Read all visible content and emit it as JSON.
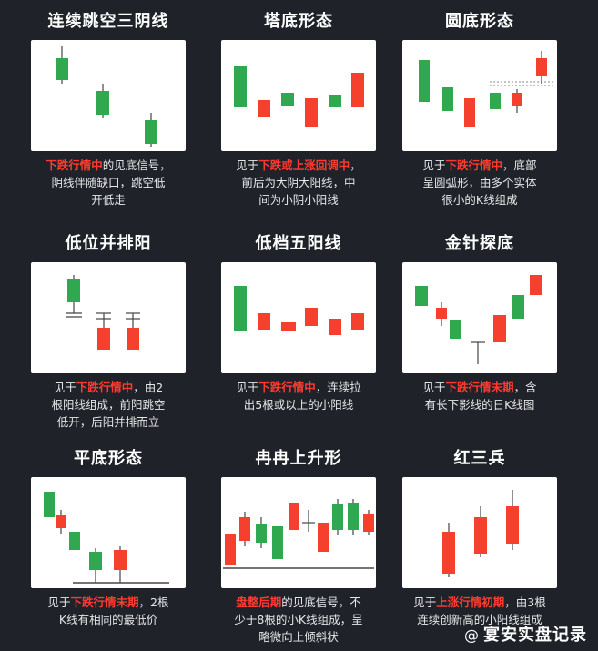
{
  "colors": {
    "up": "#f5402e",
    "down": "#2fa84f",
    "wick": "#555555",
    "highlight": "#ff3b30"
  },
  "patterns": [
    {
      "title": "连续跳空三阴线",
      "desc_lines": [
        [
          {
            "t": "下跌行情中",
            "hl": true
          },
          {
            "t": "的见底信号，",
            "hl": false
          }
        ],
        [
          {
            "t": "阴线伴随缺口，跳空低",
            "hl": false
          }
        ],
        [
          {
            "t": "开低走",
            "hl": false
          }
        ]
      ]
    },
    {
      "title": "塔底形态",
      "desc_lines": [
        [
          {
            "t": "见于",
            "hl": false
          },
          {
            "t": "下跌或上涨回调中",
            "hl": true
          },
          {
            "t": "，",
            "hl": false
          }
        ],
        [
          {
            "t": "前后为大阴大阳线，中",
            "hl": false
          }
        ],
        [
          {
            "t": "间为小阴小阳线",
            "hl": false
          }
        ]
      ]
    },
    {
      "title": "圆底形态",
      "desc_lines": [
        [
          {
            "t": "见于",
            "hl": false
          },
          {
            "t": "下跌行情中",
            "hl": true
          },
          {
            "t": "，底部",
            "hl": false
          }
        ],
        [
          {
            "t": "呈圆弧形，由多个实体",
            "hl": false
          }
        ],
        [
          {
            "t": "很小的K线组成",
            "hl": false
          }
        ]
      ]
    },
    {
      "title": "低位并排阳",
      "desc_lines": [
        [
          {
            "t": "见于",
            "hl": false
          },
          {
            "t": "下跌行情中",
            "hl": true
          },
          {
            "t": "，由2",
            "hl": false
          }
        ],
        [
          {
            "t": "根阳线组成，前阳跳空",
            "hl": false
          }
        ],
        [
          {
            "t": "低开，后阳并排而立",
            "hl": false
          }
        ]
      ]
    },
    {
      "title": "低档五阳线",
      "desc_lines": [
        [
          {
            "t": "见于",
            "hl": false
          },
          {
            "t": "下跌行情中",
            "hl": true
          },
          {
            "t": "，连续拉",
            "hl": false
          }
        ],
        [
          {
            "t": "出5根或以上的小阳线",
            "hl": false
          }
        ]
      ]
    },
    {
      "title": "金针探底",
      "desc_lines": [
        [
          {
            "t": "见于",
            "hl": false
          },
          {
            "t": "下跌行情末期",
            "hl": true
          },
          {
            "t": "，含",
            "hl": false
          }
        ],
        [
          {
            "t": "有长下影线的日K线图",
            "hl": false
          }
        ]
      ]
    },
    {
      "title": "平底形态",
      "desc_lines": [
        [
          {
            "t": "见于",
            "hl": false
          },
          {
            "t": "下跌行情末期",
            "hl": true
          },
          {
            "t": "，2根",
            "hl": false
          }
        ],
        [
          {
            "t": "K线有相同的最低价",
            "hl": false
          }
        ]
      ]
    },
    {
      "title": "冉冉上升形",
      "desc_lines": [
        [
          {
            "t": "盘整后期",
            "hl": true
          },
          {
            "t": "的见底信号，不",
            "hl": false
          }
        ],
        [
          {
            "t": "少于8根的小K线组成，呈",
            "hl": false
          }
        ],
        [
          {
            "t": "略微向上倾斜状",
            "hl": false
          }
        ]
      ]
    },
    {
      "title": "红三兵",
      "desc_lines": [
        [
          {
            "t": "见于",
            "hl": false
          },
          {
            "t": "上涨行情初期",
            "hl": true
          },
          {
            "t": "，由3根",
            "hl": false
          }
        ],
        [
          {
            "t": "连续创新高的小阳线组成",
            "hl": false
          }
        ]
      ]
    }
  ],
  "watermark": {
    "at": "@",
    "text": "宴安实盘记录"
  }
}
